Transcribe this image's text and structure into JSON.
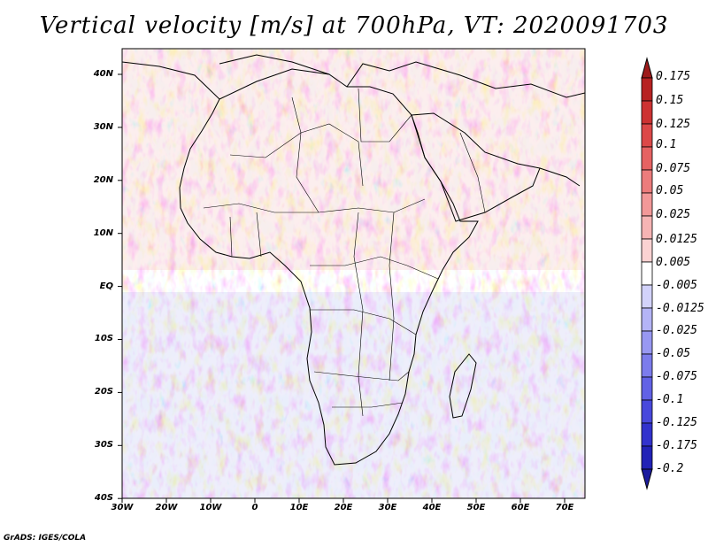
{
  "title": "Vertical velocity [m/s] at 700hPa, VT: 2020091703",
  "credit": "GrADS: IGES/COLA",
  "map": {
    "lat_labels": [
      "40N",
      "30N",
      "20N",
      "10N",
      "EQ",
      "10S",
      "20S",
      "30S",
      "40S"
    ],
    "lon_labels": [
      "30W",
      "20W",
      "10W",
      "0",
      "10E",
      "20E",
      "30E",
      "40E",
      "50E",
      "60E",
      "70E"
    ]
  },
  "colorbar": {
    "labels": [
      "0.175",
      "0.15",
      "0.125",
      "0.1",
      "0.075",
      "0.05",
      "0.025",
      "0.0125",
      "0.005",
      "-0.005",
      "-0.0125",
      "-0.025",
      "-0.05",
      "-0.075",
      "-0.1",
      "-0.125",
      "-0.175",
      "-0.2"
    ],
    "colors": [
      "#9e1b1b",
      "#b72222",
      "#cd3232",
      "#dc4848",
      "#e66262",
      "#ec7c7c",
      "#f29898",
      "#f6b4b4",
      "#fad2d2",
      "#ffffff",
      "#d2d2fa",
      "#b4b4f6",
      "#9898f2",
      "#7c7cec",
      "#6262e6",
      "#4848dc",
      "#3232cd",
      "#2222b7",
      "#1b1b9e"
    ]
  }
}
